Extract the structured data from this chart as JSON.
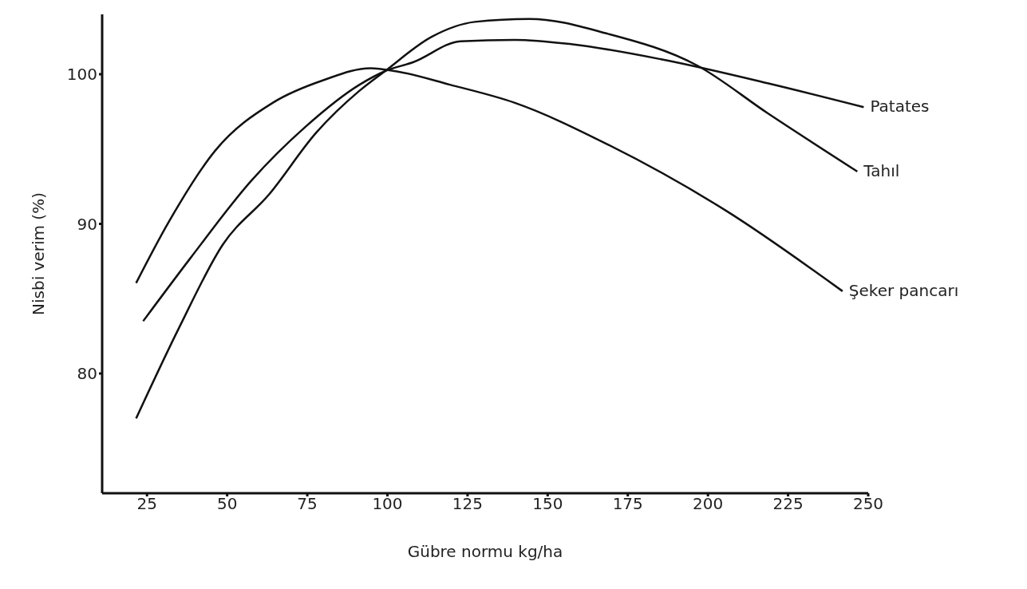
{
  "chart_data": {
    "type": "line",
    "xlabel": "Gübre   normu    kg/ha",
    "ylabel": "Nisbi   verim  (%)",
    "xlim": [
      11,
      250
    ],
    "ylim": [
      72,
      104
    ],
    "xticks": [
      25,
      50,
      75,
      100,
      125,
      150,
      175,
      200,
      225,
      250
    ],
    "yticks": [
      80,
      90,
      100
    ],
    "grid": false,
    "legend": false,
    "marker": "none",
    "line_style": "solid",
    "series": [
      {
        "name": "Patates",
        "color": "#111111",
        "x": [
          23.8,
          38.5,
          57.6,
          74.5,
          91.3,
          99.2,
          108,
          122.8,
          139.7,
          157.7,
          185.4,
          218.6,
          248.6
        ],
        "values": [
          83.5,
          87.7,
          92.9,
          96.5,
          99.3,
          100.2,
          100.8,
          102.2,
          102.3,
          102.0,
          101.0,
          99.4,
          97.8
        ]
      },
      {
        "name": "Tahıl",
        "color": "#111111",
        "x": [
          21.6,
          35.1,
          48.6,
          63.2,
          77.8,
          91.3,
          99.2,
          113.8,
          127.3,
          144.3,
          168.8,
          196.5,
          218.6,
          246.6
        ],
        "values": [
          77.0,
          83.1,
          88.6,
          92.0,
          96.1,
          98.9,
          100.2,
          102.5,
          103.5,
          103.7,
          102.7,
          100.6,
          97.4,
          93.5
        ]
      },
      {
        "name": "Şeker pancarı",
        "color": "#111111",
        "x": [
          21.6,
          31.7,
          46.3,
          64.3,
          80,
          94.7,
          102.6,
          119.5,
          139.6,
          168.8,
          205.5,
          242
        ],
        "values": [
          86.05,
          90.1,
          94.9,
          98.1,
          99.6,
          100.4,
          100.2,
          99.3,
          98.1,
          95.3,
          90.9,
          85.5
        ]
      }
    ]
  }
}
